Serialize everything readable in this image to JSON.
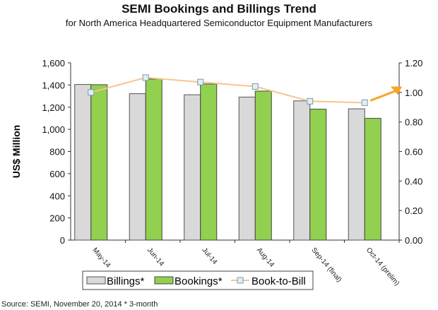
{
  "chart_data": {
    "type": "bar",
    "title": "SEMI Bookings and Billings Trend",
    "subtitle": "for North America Headquartered Semiconductor Equipment Manufacturers",
    "ylabel": "US$ Million",
    "ylim": [
      0,
      1600
    ],
    "y2lim": [
      0,
      1.2
    ],
    "yticks": [
      "0",
      "200",
      "400",
      "600",
      "800",
      "1,000",
      "1,200",
      "1,400",
      "1,600"
    ],
    "y2ticks": [
      "0.00",
      "0.20",
      "0.40",
      "0.60",
      "0.80",
      "1.00",
      "1.20"
    ],
    "categories": [
      "May-14",
      "Jun-14",
      "Jul-14",
      "Aug-14",
      "Sep-14 (final)",
      "Oct-14 (prelim)"
    ],
    "series": [
      {
        "name": "Billings*",
        "type": "bar",
        "axis": "left",
        "color": "#d9d9d9",
        "values": [
          1405,
          1322,
          1312,
          1291,
          1257,
          1185
        ]
      },
      {
        "name": "Bookings*",
        "type": "bar",
        "axis": "left",
        "color": "#92d050",
        "values": [
          1403,
          1454,
          1409,
          1345,
          1182,
          1099
        ]
      },
      {
        "name": "Book-to-Bill",
        "type": "line",
        "axis": "right",
        "color": "#f8c490",
        "values": [
          1.0,
          1.1,
          1.07,
          1.04,
          0.94,
          0.93
        ]
      }
    ],
    "arrow_color": "#f5a623",
    "legend": "bottom",
    "source": "Source: SEMI, November 20, 2014   * 3-month"
  }
}
